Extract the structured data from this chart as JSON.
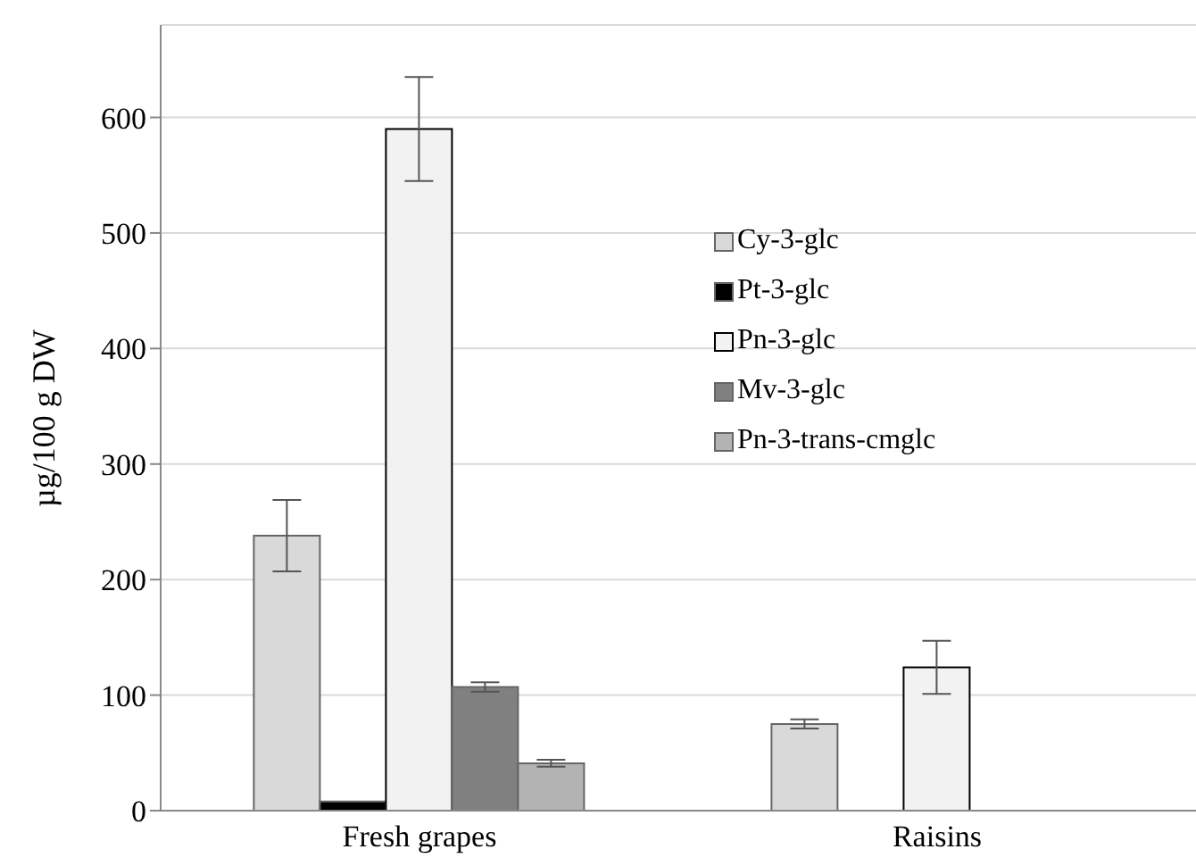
{
  "chart_data": {
    "type": "bar",
    "ylabel": "µg/100 g DW",
    "categories": [
      "Fresh grapes",
      "Raisins"
    ],
    "series": [
      {
        "name": "Cy-3-glc",
        "color": "#d9d9d9",
        "values": [
          238,
          75
        ],
        "errors": [
          31,
          4
        ]
      },
      {
        "name": "Pt-3-glc",
        "color": "#000000",
        "values": [
          8,
          null
        ],
        "errors": [
          null,
          null
        ]
      },
      {
        "name": "Pn-3-glc",
        "color": "#f2f2f2",
        "values": [
          590,
          124
        ],
        "errors": [
          45,
          23
        ]
      },
      {
        "name": "Mv-3-glc",
        "color": "#808080",
        "values": [
          107,
          null
        ],
        "errors": [
          4,
          null
        ]
      },
      {
        "name": "Pn-3-trans-cmglc",
        "color": "#b3b3b3",
        "values": [
          41,
          null
        ],
        "errors": [
          3,
          null
        ]
      }
    ],
    "ylim": [
      0,
      680
    ],
    "yticks": [
      0,
      100,
      200,
      300,
      400,
      500,
      600
    ],
    "grid": "y",
    "legend": "right"
  }
}
